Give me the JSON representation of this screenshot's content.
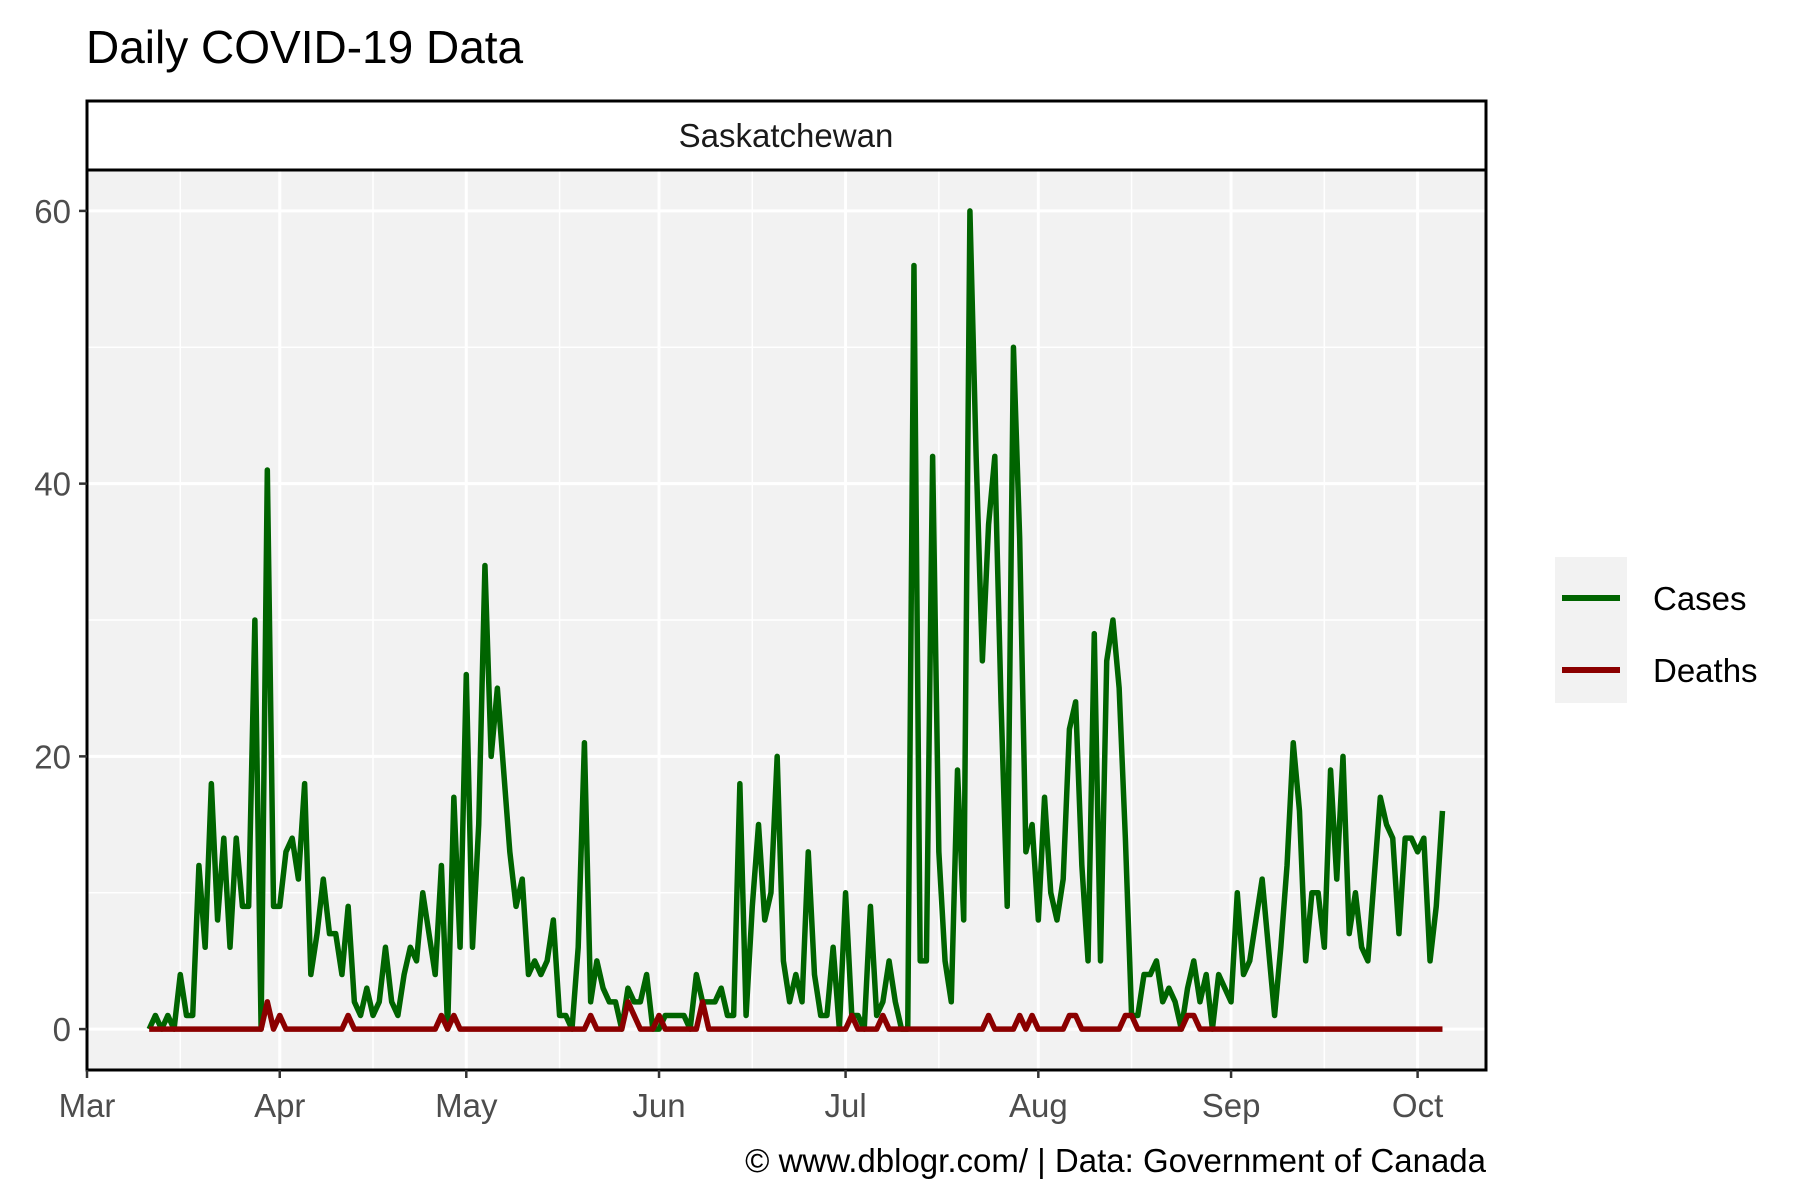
{
  "chart_data": {
    "type": "line",
    "title": "Daily COVID-19 Data",
    "facet": "Saskatchewan",
    "caption": "© www.dblogr.com/  |  Data: Government of Canada",
    "xlabel": "",
    "ylabel": "",
    "xlim": [
      "2020-03-01",
      "2020-10-12"
    ],
    "ylim": [
      -3,
      63
    ],
    "x_ticks": [
      {
        "label": "Mar",
        "date": "2020-03-01"
      },
      {
        "label": "Apr",
        "date": "2020-04-01"
      },
      {
        "label": "May",
        "date": "2020-05-01"
      },
      {
        "label": "Jun",
        "date": "2020-06-01"
      },
      {
        "label": "Jul",
        "date": "2020-07-01"
      },
      {
        "label": "Aug",
        "date": "2020-08-01"
      },
      {
        "label": "Sep",
        "date": "2020-09-01"
      },
      {
        "label": "Oct",
        "date": "2020-10-01"
      }
    ],
    "y_ticks": [
      0,
      20,
      40,
      60
    ],
    "grid": true,
    "legend_position": "right",
    "series": [
      {
        "name": "Cases",
        "color": "#006400",
        "points": [
          [
            "2020-03-11",
            0
          ],
          [
            "2020-03-12",
            1
          ],
          [
            "2020-03-13",
            0
          ],
          [
            "2020-03-14",
            1
          ],
          [
            "2020-03-15",
            0
          ],
          [
            "2020-03-16",
            4
          ],
          [
            "2020-03-17",
            1
          ],
          [
            "2020-03-18",
            1
          ],
          [
            "2020-03-19",
            12
          ],
          [
            "2020-03-20",
            6
          ],
          [
            "2020-03-21",
            18
          ],
          [
            "2020-03-22",
            8
          ],
          [
            "2020-03-23",
            14
          ],
          [
            "2020-03-24",
            6
          ],
          [
            "2020-03-25",
            14
          ],
          [
            "2020-03-26",
            9
          ],
          [
            "2020-03-27",
            9
          ],
          [
            "2020-03-28",
            30
          ],
          [
            "2020-03-29",
            0
          ],
          [
            "2020-03-30",
            41
          ],
          [
            "2020-03-31",
            9
          ],
          [
            "2020-04-01",
            9
          ],
          [
            "2020-04-02",
            13
          ],
          [
            "2020-04-03",
            14
          ],
          [
            "2020-04-04",
            11
          ],
          [
            "2020-04-05",
            18
          ],
          [
            "2020-04-06",
            4
          ],
          [
            "2020-04-07",
            7
          ],
          [
            "2020-04-08",
            11
          ],
          [
            "2020-04-09",
            7
          ],
          [
            "2020-04-10",
            7
          ],
          [
            "2020-04-11",
            4
          ],
          [
            "2020-04-12",
            9
          ],
          [
            "2020-04-13",
            2
          ],
          [
            "2020-04-14",
            1
          ],
          [
            "2020-04-15",
            3
          ],
          [
            "2020-04-16",
            1
          ],
          [
            "2020-04-17",
            2
          ],
          [
            "2020-04-18",
            6
          ],
          [
            "2020-04-19",
            2
          ],
          [
            "2020-04-20",
            1
          ],
          [
            "2020-04-21",
            4
          ],
          [
            "2020-04-22",
            6
          ],
          [
            "2020-04-23",
            5
          ],
          [
            "2020-04-24",
            10
          ],
          [
            "2020-04-25",
            7
          ],
          [
            "2020-04-26",
            4
          ],
          [
            "2020-04-27",
            12
          ],
          [
            "2020-04-28",
            0
          ],
          [
            "2020-04-29",
            17
          ],
          [
            "2020-04-30",
            6
          ],
          [
            "2020-05-01",
            26
          ],
          [
            "2020-05-02",
            6
          ],
          [
            "2020-05-03",
            15
          ],
          [
            "2020-05-04",
            34
          ],
          [
            "2020-05-05",
            20
          ],
          [
            "2020-05-06",
            25
          ],
          [
            "2020-05-07",
            19
          ],
          [
            "2020-05-08",
            13
          ],
          [
            "2020-05-09",
            9
          ],
          [
            "2020-05-10",
            11
          ],
          [
            "2020-05-11",
            4
          ],
          [
            "2020-05-12",
            5
          ],
          [
            "2020-05-13",
            4
          ],
          [
            "2020-05-14",
            5
          ],
          [
            "2020-05-15",
            8
          ],
          [
            "2020-05-16",
            1
          ],
          [
            "2020-05-17",
            1
          ],
          [
            "2020-05-18",
            0
          ],
          [
            "2020-05-19",
            6
          ],
          [
            "2020-05-20",
            21
          ],
          [
            "2020-05-21",
            2
          ],
          [
            "2020-05-22",
            5
          ],
          [
            "2020-05-23",
            3
          ],
          [
            "2020-05-24",
            2
          ],
          [
            "2020-05-25",
            2
          ],
          [
            "2020-05-26",
            0
          ],
          [
            "2020-05-27",
            3
          ],
          [
            "2020-05-28",
            2
          ],
          [
            "2020-05-29",
            2
          ],
          [
            "2020-05-30",
            4
          ],
          [
            "2020-05-31",
            0
          ],
          [
            "2020-06-01",
            0
          ],
          [
            "2020-06-02",
            1
          ],
          [
            "2020-06-03",
            1
          ],
          [
            "2020-06-04",
            1
          ],
          [
            "2020-06-05",
            1
          ],
          [
            "2020-06-06",
            0
          ],
          [
            "2020-06-07",
            4
          ],
          [
            "2020-06-08",
            2
          ],
          [
            "2020-06-09",
            2
          ],
          [
            "2020-06-10",
            2
          ],
          [
            "2020-06-11",
            3
          ],
          [
            "2020-06-12",
            1
          ],
          [
            "2020-06-13",
            1
          ],
          [
            "2020-06-14",
            18
          ],
          [
            "2020-06-15",
            1
          ],
          [
            "2020-06-16",
            9
          ],
          [
            "2020-06-17",
            15
          ],
          [
            "2020-06-18",
            8
          ],
          [
            "2020-06-19",
            10
          ],
          [
            "2020-06-20",
            20
          ],
          [
            "2020-06-21",
            5
          ],
          [
            "2020-06-22",
            2
          ],
          [
            "2020-06-23",
            4
          ],
          [
            "2020-06-24",
            2
          ],
          [
            "2020-06-25",
            13
          ],
          [
            "2020-06-26",
            4
          ],
          [
            "2020-06-27",
            1
          ],
          [
            "2020-06-28",
            1
          ],
          [
            "2020-06-29",
            6
          ],
          [
            "2020-06-30",
            0
          ],
          [
            "2020-07-01",
            10
          ],
          [
            "2020-07-02",
            1
          ],
          [
            "2020-07-03",
            1
          ],
          [
            "2020-07-04",
            0
          ],
          [
            "2020-07-05",
            9
          ],
          [
            "2020-07-06",
            1
          ],
          [
            "2020-07-07",
            2
          ],
          [
            "2020-07-08",
            5
          ],
          [
            "2020-07-09",
            2
          ],
          [
            "2020-07-10",
            0
          ],
          [
            "2020-07-11",
            0
          ],
          [
            "2020-07-12",
            56
          ],
          [
            "2020-07-13",
            5
          ],
          [
            "2020-07-14",
            5
          ],
          [
            "2020-07-15",
            42
          ],
          [
            "2020-07-16",
            13
          ],
          [
            "2020-07-17",
            5
          ],
          [
            "2020-07-18",
            2
          ],
          [
            "2020-07-19",
            19
          ],
          [
            "2020-07-20",
            8
          ],
          [
            "2020-07-21",
            60
          ],
          [
            "2020-07-22",
            42
          ],
          [
            "2020-07-23",
            27
          ],
          [
            "2020-07-24",
            37
          ],
          [
            "2020-07-25",
            42
          ],
          [
            "2020-07-26",
            24
          ],
          [
            "2020-07-27",
            9
          ],
          [
            "2020-07-28",
            50
          ],
          [
            "2020-07-29",
            36
          ],
          [
            "2020-07-30",
            13
          ],
          [
            "2020-07-31",
            15
          ],
          [
            "2020-08-01",
            8
          ],
          [
            "2020-08-02",
            17
          ],
          [
            "2020-08-03",
            10
          ],
          [
            "2020-08-04",
            8
          ],
          [
            "2020-08-05",
            11
          ],
          [
            "2020-08-06",
            22
          ],
          [
            "2020-08-07",
            24
          ],
          [
            "2020-08-08",
            12
          ],
          [
            "2020-08-09",
            5
          ],
          [
            "2020-08-10",
            29
          ],
          [
            "2020-08-11",
            5
          ],
          [
            "2020-08-12",
            27
          ],
          [
            "2020-08-13",
            30
          ],
          [
            "2020-08-14",
            25
          ],
          [
            "2020-08-15",
            14
          ],
          [
            "2020-08-16",
            1
          ],
          [
            "2020-08-17",
            1
          ],
          [
            "2020-08-18",
            4
          ],
          [
            "2020-08-19",
            4
          ],
          [
            "2020-08-20",
            5
          ],
          [
            "2020-08-21",
            2
          ],
          [
            "2020-08-22",
            3
          ],
          [
            "2020-08-23",
            2
          ],
          [
            "2020-08-24",
            0
          ],
          [
            "2020-08-25",
            3
          ],
          [
            "2020-08-26",
            5
          ],
          [
            "2020-08-27",
            2
          ],
          [
            "2020-08-28",
            4
          ],
          [
            "2020-08-29",
            0
          ],
          [
            "2020-08-30",
            4
          ],
          [
            "2020-08-31",
            3
          ],
          [
            "2020-09-01",
            2
          ],
          [
            "2020-09-02",
            10
          ],
          [
            "2020-09-03",
            4
          ],
          [
            "2020-09-04",
            5
          ],
          [
            "2020-09-05",
            8
          ],
          [
            "2020-09-06",
            11
          ],
          [
            "2020-09-07",
            6
          ],
          [
            "2020-09-08",
            1
          ],
          [
            "2020-09-09",
            6
          ],
          [
            "2020-09-10",
            12
          ],
          [
            "2020-09-11",
            21
          ],
          [
            "2020-09-12",
            16
          ],
          [
            "2020-09-13",
            5
          ],
          [
            "2020-09-14",
            10
          ],
          [
            "2020-09-15",
            10
          ],
          [
            "2020-09-16",
            6
          ],
          [
            "2020-09-17",
            19
          ],
          [
            "2020-09-18",
            11
          ],
          [
            "2020-09-19",
            20
          ],
          [
            "2020-09-20",
            7
          ],
          [
            "2020-09-21",
            10
          ],
          [
            "2020-09-22",
            6
          ],
          [
            "2020-09-23",
            5
          ],
          [
            "2020-09-24",
            11
          ],
          [
            "2020-09-25",
            17
          ],
          [
            "2020-09-26",
            15
          ],
          [
            "2020-09-27",
            14
          ],
          [
            "2020-09-28",
            7
          ],
          [
            "2020-09-29",
            14
          ],
          [
            "2020-09-30",
            14
          ],
          [
            "2020-10-01",
            13
          ],
          [
            "2020-10-02",
            14
          ],
          [
            "2020-10-03",
            5
          ],
          [
            "2020-10-04",
            9
          ],
          [
            "2020-10-05",
            16
          ]
        ]
      },
      {
        "name": "Deaths",
        "color": "#8b0000",
        "points": [
          [
            "2020-03-11",
            0
          ],
          [
            "2020-03-29",
            0
          ],
          [
            "2020-03-30",
            2
          ],
          [
            "2020-03-31",
            0
          ],
          [
            "2020-04-01",
            1
          ],
          [
            "2020-04-02",
            0
          ],
          [
            "2020-04-11",
            0
          ],
          [
            "2020-04-12",
            1
          ],
          [
            "2020-04-13",
            0
          ],
          [
            "2020-04-26",
            0
          ],
          [
            "2020-04-27",
            1
          ],
          [
            "2020-04-28",
            0
          ],
          [
            "2020-04-29",
            1
          ],
          [
            "2020-04-30",
            0
          ],
          [
            "2020-05-20",
            0
          ],
          [
            "2020-05-21",
            1
          ],
          [
            "2020-05-22",
            0
          ],
          [
            "2020-05-26",
            0
          ],
          [
            "2020-05-27",
            2
          ],
          [
            "2020-05-28",
            1
          ],
          [
            "2020-05-29",
            0
          ],
          [
            "2020-05-31",
            0
          ],
          [
            "2020-06-01",
            1
          ],
          [
            "2020-06-02",
            0
          ],
          [
            "2020-06-07",
            0
          ],
          [
            "2020-06-08",
            2
          ],
          [
            "2020-06-09",
            0
          ],
          [
            "2020-07-01",
            0
          ],
          [
            "2020-07-02",
            1
          ],
          [
            "2020-07-03",
            0
          ],
          [
            "2020-07-06",
            0
          ],
          [
            "2020-07-07",
            1
          ],
          [
            "2020-07-08",
            0
          ],
          [
            "2020-07-23",
            0
          ],
          [
            "2020-07-24",
            1
          ],
          [
            "2020-07-25",
            0
          ],
          [
            "2020-07-28",
            0
          ],
          [
            "2020-07-29",
            1
          ],
          [
            "2020-07-30",
            0
          ],
          [
            "2020-07-31",
            1
          ],
          [
            "2020-08-01",
            0
          ],
          [
            "2020-08-05",
            0
          ],
          [
            "2020-08-06",
            1
          ],
          [
            "2020-08-07",
            1
          ],
          [
            "2020-08-08",
            0
          ],
          [
            "2020-08-14",
            0
          ],
          [
            "2020-08-15",
            1
          ],
          [
            "2020-08-16",
            1
          ],
          [
            "2020-08-17",
            0
          ],
          [
            "2020-08-24",
            0
          ],
          [
            "2020-08-25",
            1
          ],
          [
            "2020-08-26",
            1
          ],
          [
            "2020-08-27",
            0
          ],
          [
            "2020-10-05",
            0
          ]
        ]
      }
    ]
  }
}
